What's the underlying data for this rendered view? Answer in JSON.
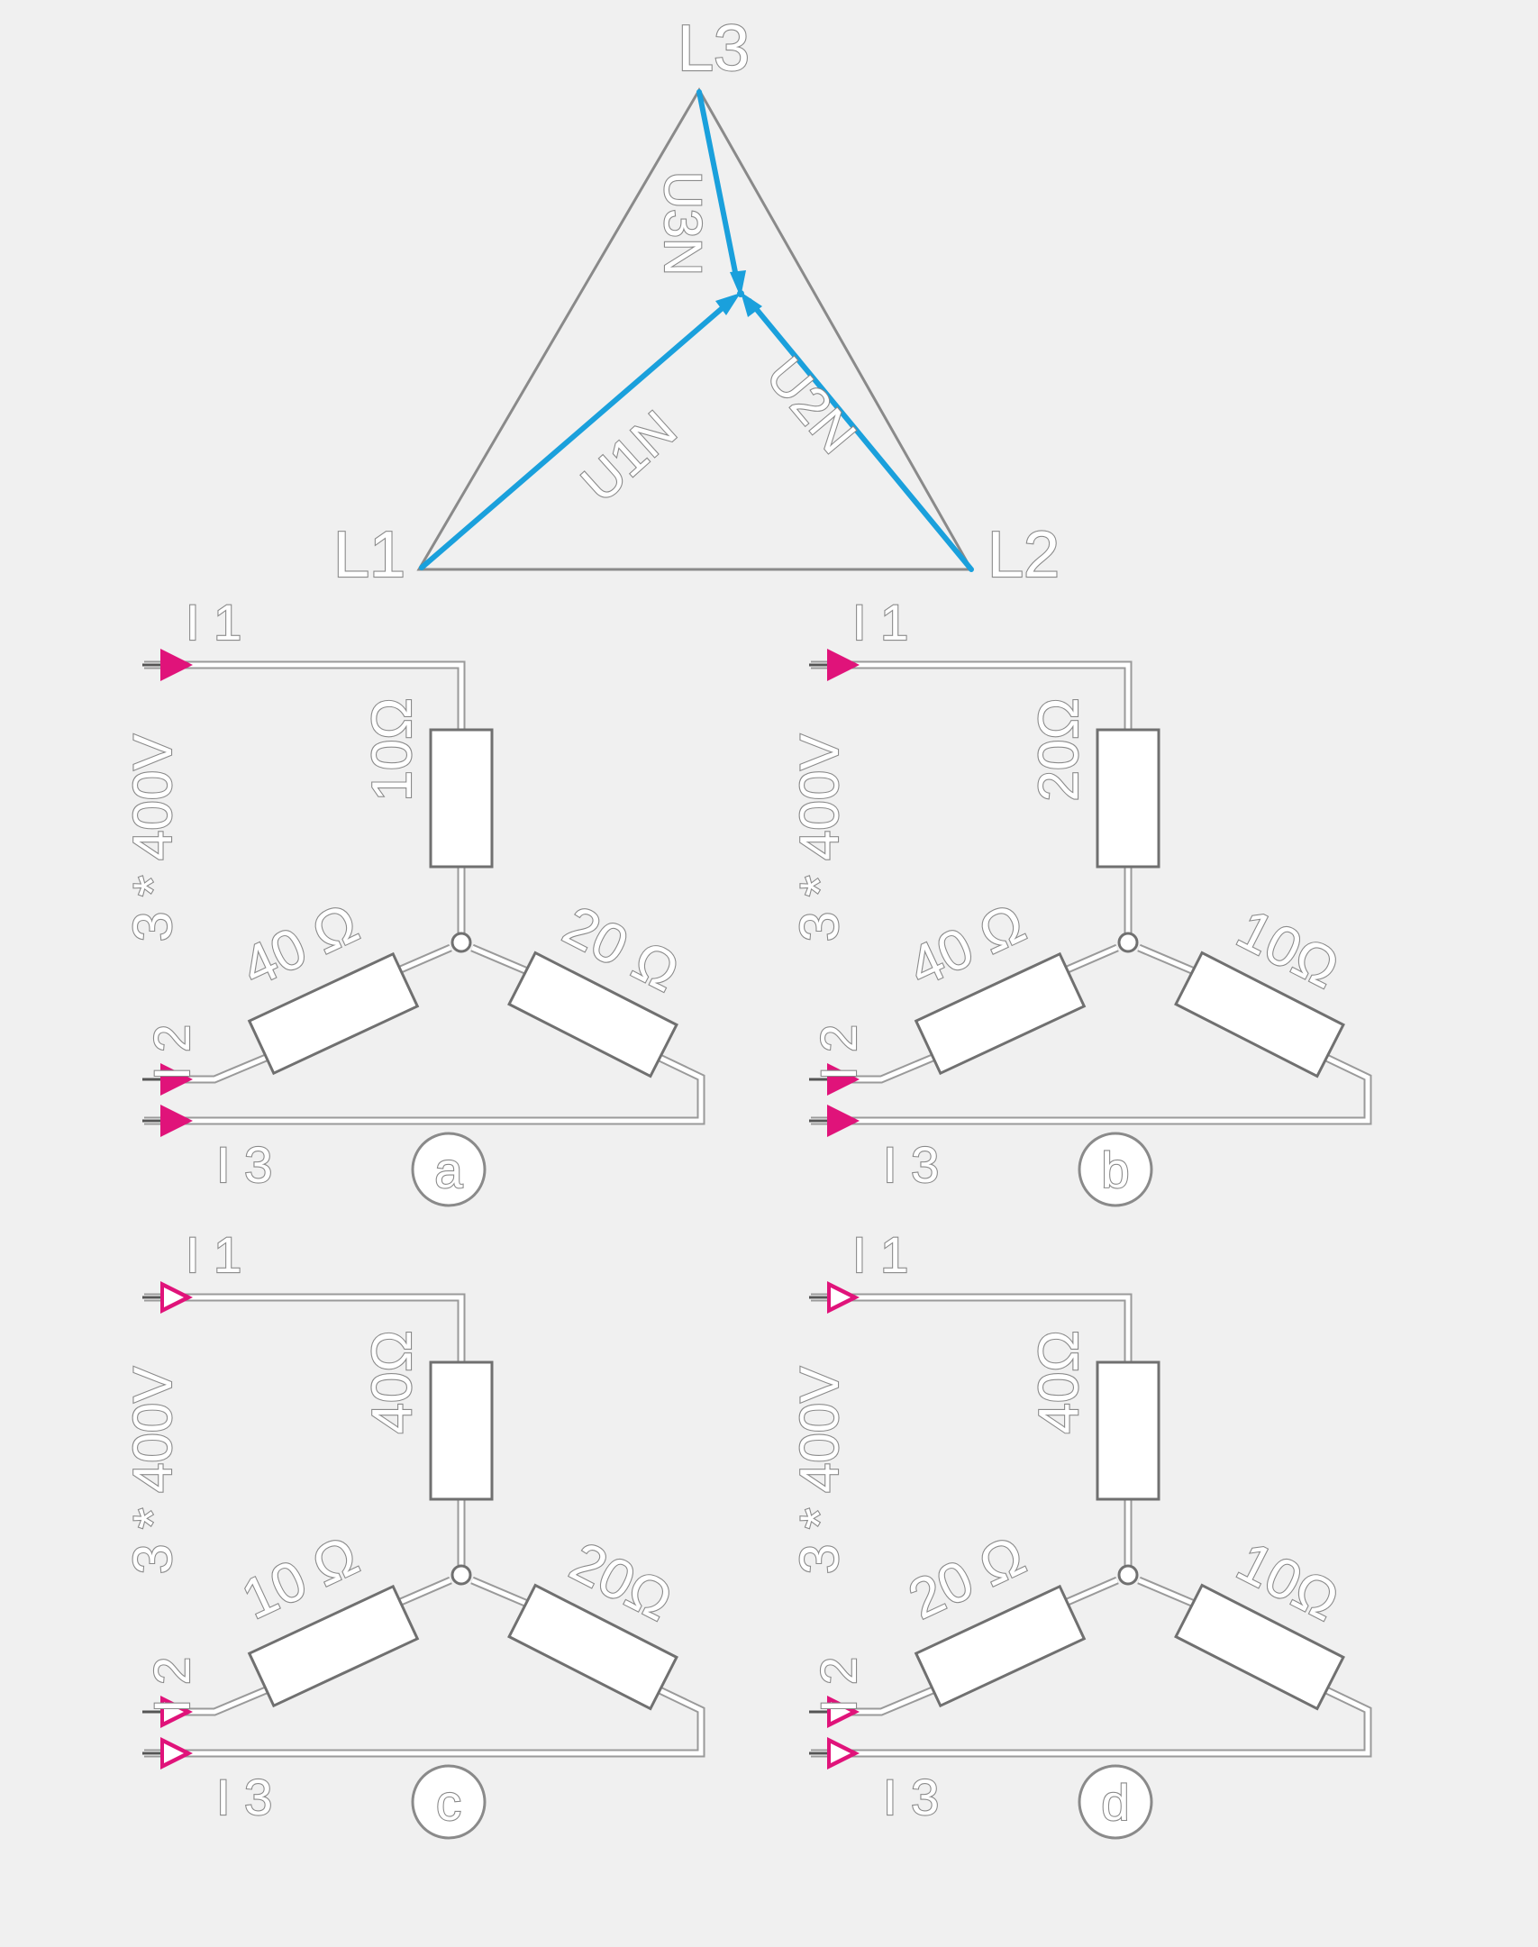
{
  "phasor_diagram": {
    "labels": {
      "l1": "L1",
      "l2": "L2",
      "l3": "L3"
    },
    "phasors": {
      "u1n": "U1N",
      "u2n": "U2N",
      "u3n": "U3N"
    },
    "colors": {
      "phasor": "#1aa0dc",
      "triangle": "#8a8a8a"
    }
  },
  "circuits": [
    {
      "id": "a",
      "label": "a",
      "supply": "3 * 400V",
      "currents": {
        "i1": "I 1",
        "i2": "I 2",
        "i3": "I 3"
      },
      "resistors": {
        "top": "10Ω",
        "left": "40 Ω",
        "right": "20 Ω"
      },
      "arrow_style": "solid"
    },
    {
      "id": "b",
      "label": "b",
      "supply": "3 * 400V",
      "currents": {
        "i1": "I 1",
        "i2": "I 2",
        "i3": "I 3"
      },
      "resistors": {
        "top": "20Ω",
        "left": "40 Ω",
        "right": "10Ω"
      },
      "arrow_style": "solid"
    },
    {
      "id": "c",
      "label": "c",
      "supply": "3 * 400V",
      "currents": {
        "i1": "I 1",
        "i2": "I 2",
        "i3": "I 3"
      },
      "resistors": {
        "top": "40Ω",
        "left": "10 Ω",
        "right": "20Ω"
      },
      "arrow_style": "hollow"
    },
    {
      "id": "d",
      "label": "d",
      "supply": "3 * 400V",
      "currents": {
        "i1": "I 1",
        "i2": "I 2",
        "i3": "I 3"
      },
      "resistors": {
        "top": "40Ω",
        "left": "20 Ω",
        "right": "10Ω"
      },
      "arrow_style": "hollow"
    }
  ],
  "colors": {
    "arrow": "#e0137a",
    "background": "#f0f0f0"
  }
}
